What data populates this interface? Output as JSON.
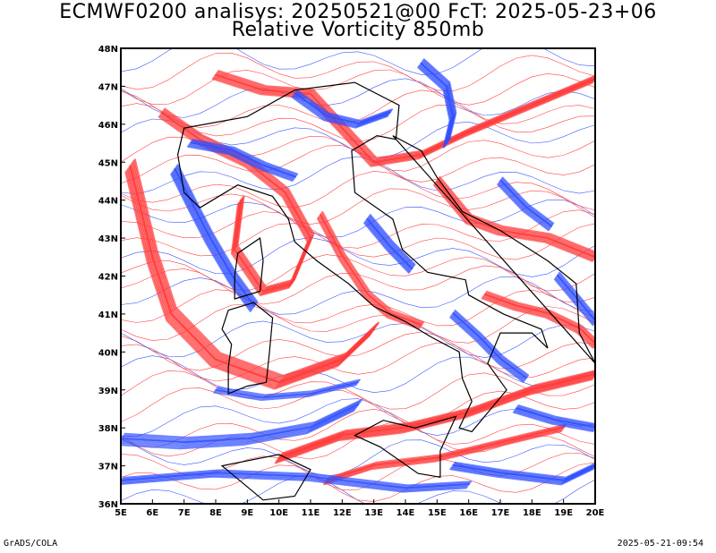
{
  "header": {
    "title_line1": "ECMWF0200 analisys: 20250521@00 FcT: 2025-05-23+06",
    "title_line2": "Relative Vorticity 850mb"
  },
  "map": {
    "lon_range": [
      5,
      20
    ],
    "lat_range": [
      36,
      48
    ],
    "x_tick_labels": [
      "5E",
      "6E",
      "7E",
      "8E",
      "9E",
      "10E",
      "11E",
      "12E",
      "13E",
      "14E",
      "15E",
      "16E",
      "17E",
      "18E",
      "19E",
      "20E"
    ],
    "y_tick_labels": [
      "36N",
      "37N",
      "38N",
      "39N",
      "40N",
      "41N",
      "42N",
      "43N",
      "44N",
      "45N",
      "46N",
      "47N",
      "48N"
    ],
    "positive_color": "#ff3a3a",
    "negative_color": "#2f4fff",
    "coastline_color": "#000000"
  },
  "footer": {
    "left_label": "GrADS/COLA",
    "right_label": "2025-05-21-09:54"
  }
}
